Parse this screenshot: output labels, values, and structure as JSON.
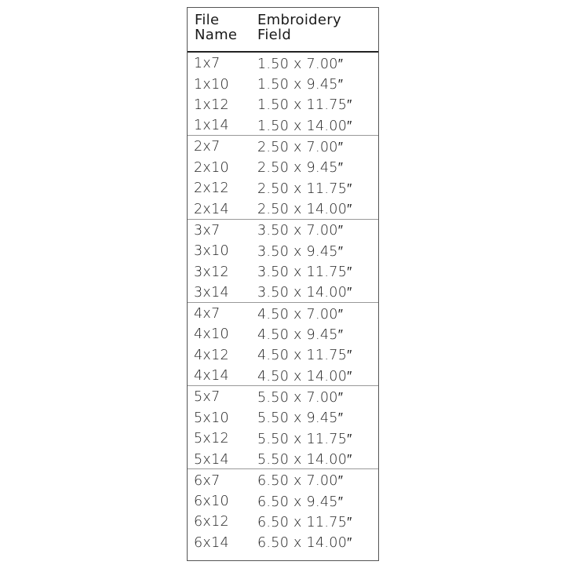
{
  "headers": {
    "file_name": "File\nName",
    "field": "Embroidery\nField"
  },
  "groups": [
    [
      [
        "1x7",
        "1.50 x 7.00″"
      ],
      [
        "1x10",
        "1.50 x 9.45″"
      ],
      [
        "1x12",
        "1.50 x 11.75″"
      ],
      [
        "1x14",
        "1.50 x 14.00″"
      ]
    ],
    [
      [
        "2x7",
        "2.50 x 7.00″"
      ],
      [
        "2x10",
        "2.50 x 9.45″"
      ],
      [
        "2x12",
        "2.50 x 11.75″"
      ],
      [
        "2x14",
        "2.50 x 14.00″"
      ]
    ],
    [
      [
        "3x7",
        "3.50 x 7.00″"
      ],
      [
        "3x10",
        "3.50 x 9.45″"
      ],
      [
        "3x12",
        "3.50 x 11.75″"
      ],
      [
        "3x14",
        "3.50 x 14.00″"
      ]
    ],
    [
      [
        "4x7",
        "4.50 x 7.00″"
      ],
      [
        "4x10",
        "4.50 x 9.45″"
      ],
      [
        "4x12",
        "4.50 x 11.75″"
      ],
      [
        "4x14",
        "4.50 x 14.00″"
      ]
    ],
    [
      [
        "5x7",
        "5.50 x 7.00″"
      ],
      [
        "5x10",
        "5.50 x 9.45″"
      ],
      [
        "5x12",
        "5.50 x 11.75″"
      ],
      [
        "5x14",
        "5.50 x 14.00″"
      ]
    ],
    [
      [
        "6x7",
        "6.50 x 7.00″"
      ],
      [
        "6x10",
        "6.50 x 9.45″"
      ],
      [
        "6x12",
        "6.50 x 11.75″"
      ],
      [
        "6x14",
        "6.50 x 14.00″"
      ]
    ]
  ]
}
